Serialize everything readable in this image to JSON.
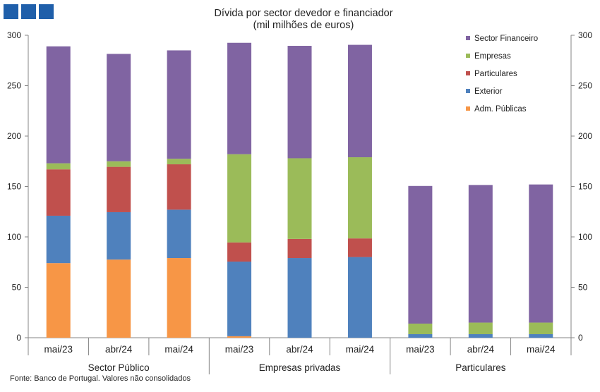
{
  "chart_data": {
    "type": "stacked-bar",
    "title": "Dívida por sector devedor e financiador",
    "subtitle": "(mil milhões de euros)",
    "ylim": [
      0,
      300
    ],
    "yticks": [
      0,
      50,
      100,
      150,
      200,
      250,
      300
    ],
    "groups": [
      {
        "name": "Sector Público",
        "categories": [
          "mai/23",
          "abr/24",
          "mai/24"
        ]
      },
      {
        "name": "Empresas privadas",
        "categories": [
          "mai/23",
          "abr/24",
          "mai/24"
        ]
      },
      {
        "name": "Particulares",
        "categories": [
          "mai/23",
          "abr/24",
          "mai/24"
        ]
      }
    ],
    "series": [
      {
        "name": "Adm. Públicas",
        "color": "#f79646",
        "values": [
          74,
          77.5,
          79,
          1.5,
          0,
          0,
          0,
          0,
          0
        ]
      },
      {
        "name": "Exterior",
        "color": "#4f81bd",
        "values": [
          47,
          47,
          48,
          74,
          79,
          80,
          3.5,
          3.5,
          3.5
        ]
      },
      {
        "name": "Particulares",
        "color": "#c0504d",
        "values": [
          46,
          45,
          45,
          19,
          19,
          18.5,
          0,
          0,
          0
        ]
      },
      {
        "name": "Empresas",
        "color": "#9bbb59",
        "values": [
          6,
          5.5,
          5.5,
          87.5,
          80,
          80.5,
          10.5,
          11.5,
          11.5
        ]
      },
      {
        "name": "Sector Financeiro",
        "color": "#8064a2",
        "values": [
          116,
          106.5,
          107.5,
          110.5,
          111.5,
          111.5,
          136.5,
          136.5,
          137
        ]
      }
    ],
    "legend": {
      "position": "top-right",
      "order": [
        "Sector Financeiro",
        "Empresas",
        "Particulares",
        "Exterior",
        "Adm. Públicas"
      ]
    }
  },
  "source": "Fonte: Banco de Portugal. Valores não consolidados",
  "colors": {
    "axis": "#868686",
    "text": "#222222",
    "logo": "#1f5faa"
  }
}
